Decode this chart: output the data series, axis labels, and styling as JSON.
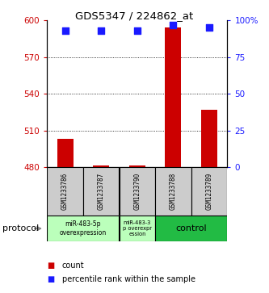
{
  "title": "GDS5347 / 224862_at",
  "samples": [
    "GSM1233786",
    "GSM1233787",
    "GSM1233790",
    "GSM1233788",
    "GSM1233789"
  ],
  "count_values": [
    503,
    481.5,
    481.5,
    594,
    527
  ],
  "percentile_values": [
    93,
    93,
    93,
    97,
    95
  ],
  "count_baseline": 480,
  "ylim_left": [
    480,
    600
  ],
  "yticks_left": [
    480,
    510,
    540,
    570,
    600
  ],
  "ylim_right": [
    0,
    100
  ],
  "yticks_right": [
    0,
    25,
    50,
    75,
    100
  ],
  "bar_color": "#cc0000",
  "dot_color": "#1a1aff",
  "bg_color": "#ffffff",
  "left_tick_color": "#cc0000",
  "right_tick_color": "#1a1aff",
  "group1_color": "#bbffbb",
  "group2_color": "#bbffbb",
  "group3_color": "#22bb44",
  "sample_box_color": "#cccccc",
  "protocol_label": "protocol",
  "legend_count": "count",
  "legend_pct": "percentile rank within the sample",
  "dot_size": 30,
  "bar_width": 0.45,
  "figsize": [
    3.33,
    3.63
  ],
  "dpi": 100
}
